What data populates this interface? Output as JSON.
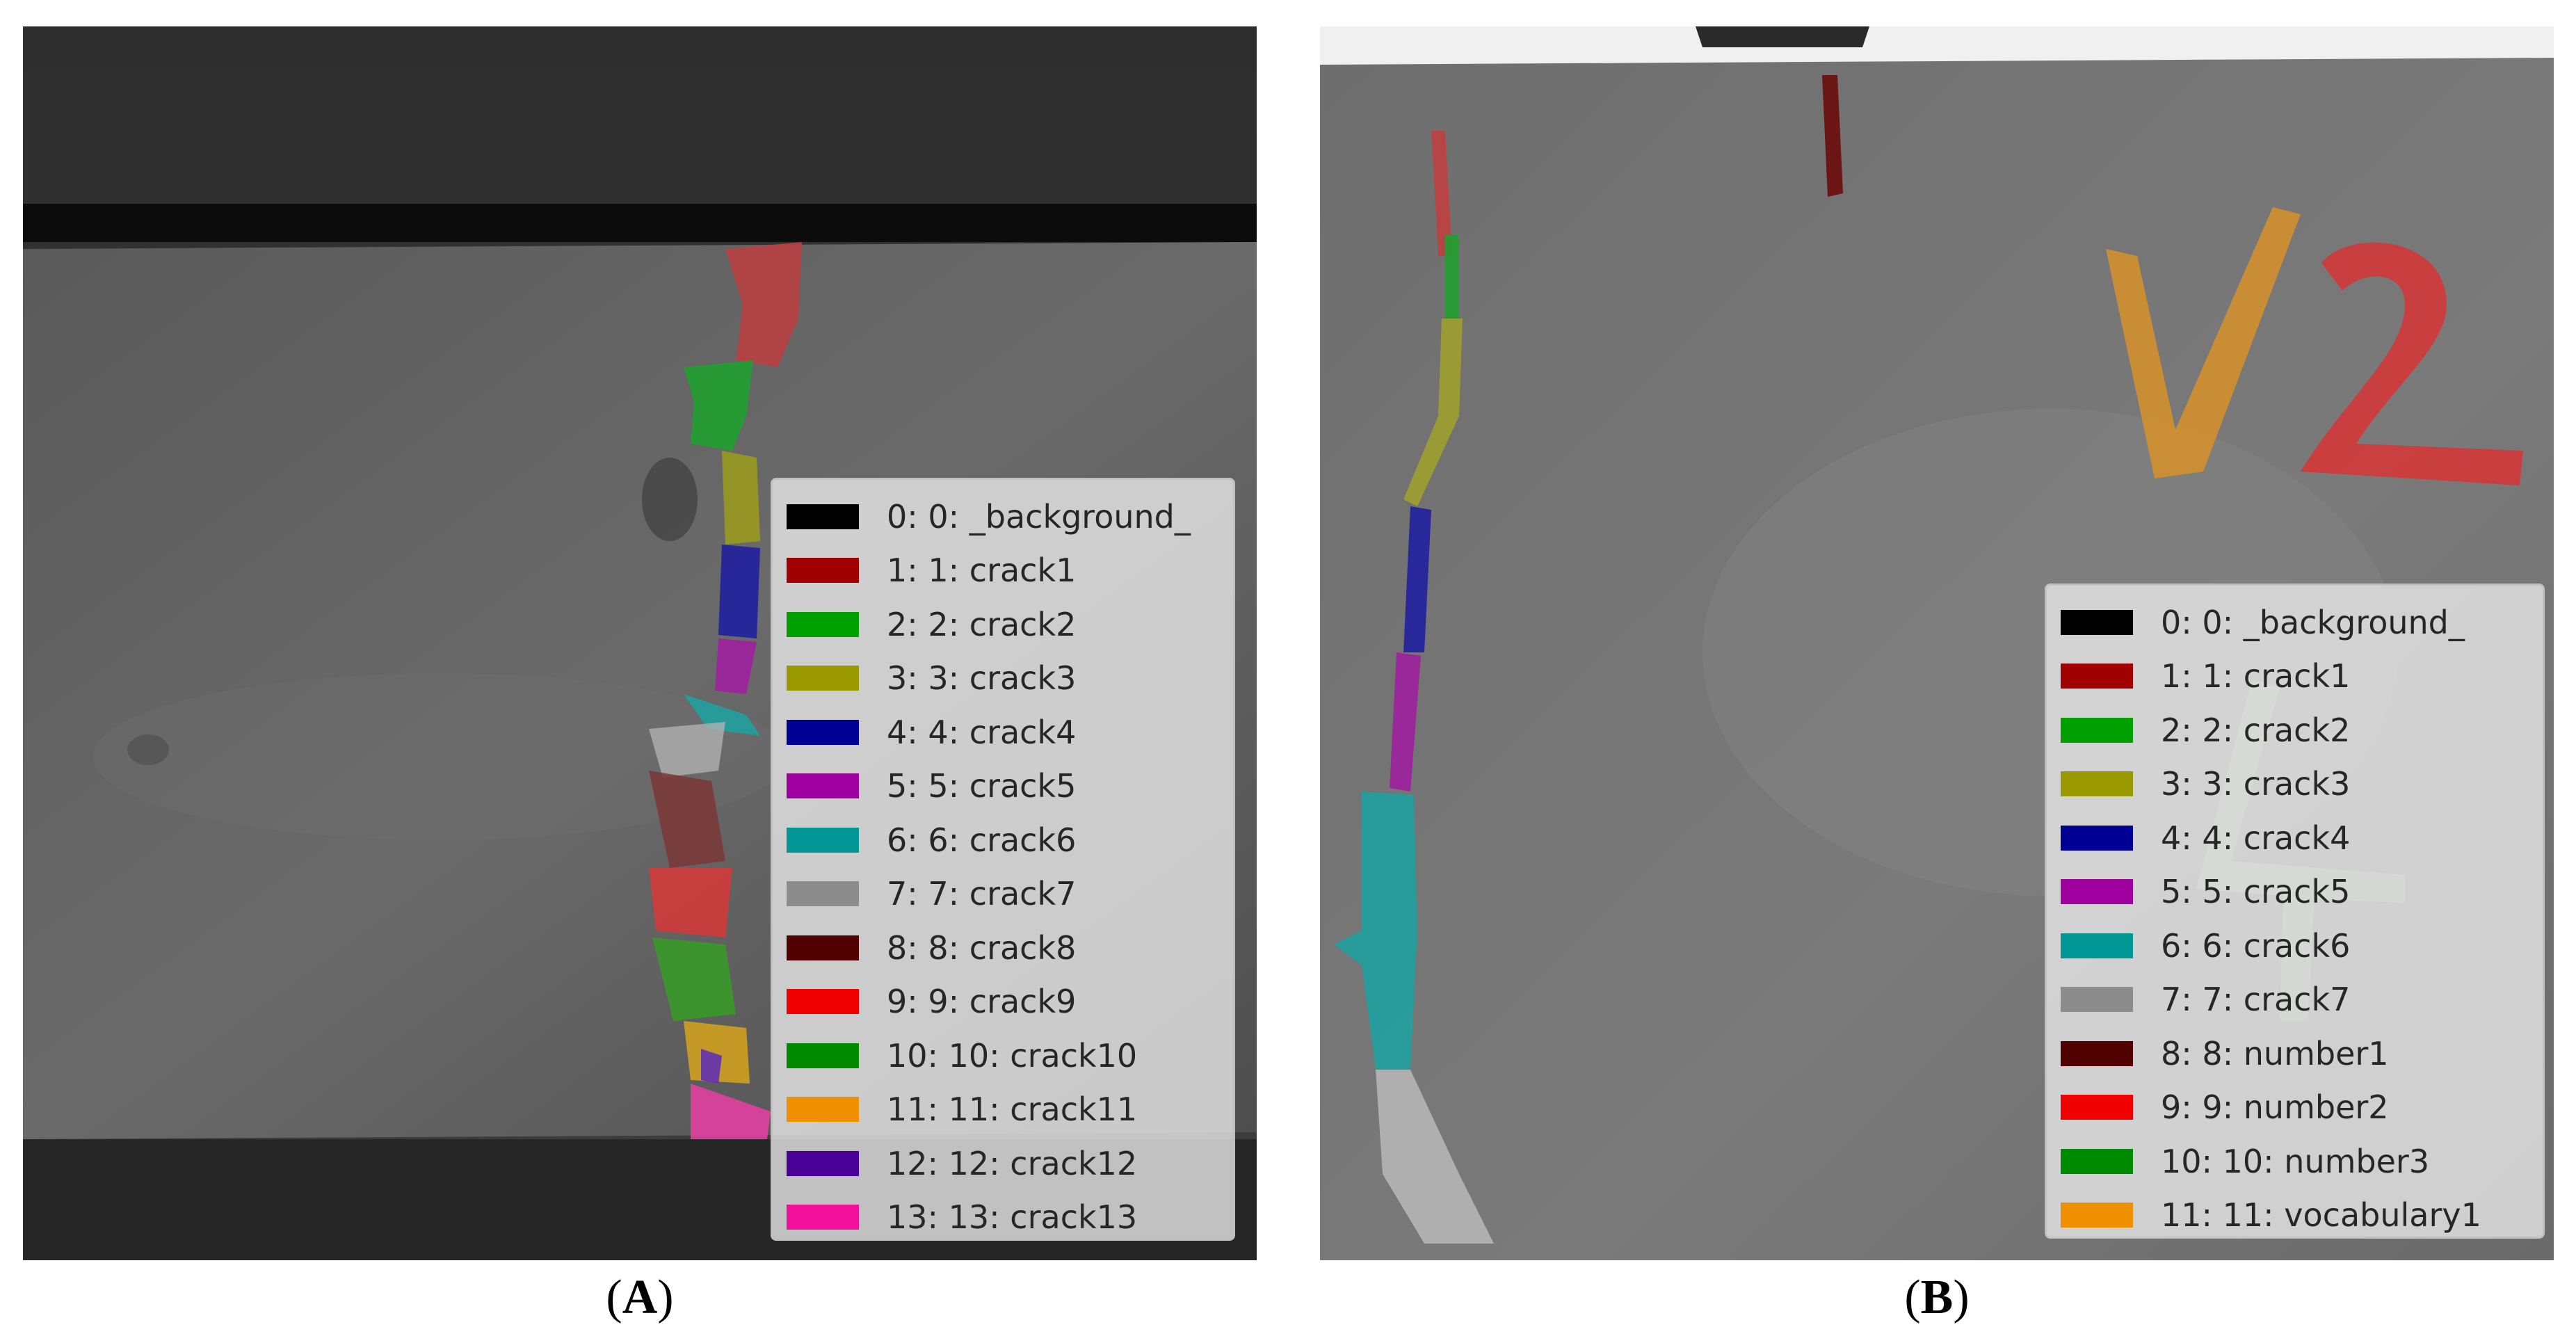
{
  "panels": [
    {
      "id": "A",
      "caption_open": "(",
      "caption_letter": "A",
      "caption_close": ")",
      "legend": [
        {
          "label": "0: 0: _background_",
          "color": "#000000"
        },
        {
          "label": "1: 1: crack1",
          "color": "#a00000"
        },
        {
          "label": "2: 2: crack2",
          "color": "#00a000"
        },
        {
          "label": "3: 3: crack3",
          "color": "#9a9a00"
        },
        {
          "label": "4: 4: crack4",
          "color": "#000094"
        },
        {
          "label": "5: 5: crack5",
          "color": "#a000a0"
        },
        {
          "label": "6: 6: crack6",
          "color": "#009696"
        },
        {
          "label": "7: 7: crack7",
          "color": "#8c8c8c"
        },
        {
          "label": "8: 8: crack8",
          "color": "#500000"
        },
        {
          "label": "9: 9: crack9",
          "color": "#f00000"
        },
        {
          "label": "10: 10: crack10",
          "color": "#008a00"
        },
        {
          "label": "11: 11: crack11",
          "color": "#f09000"
        },
        {
          "label": "12: 12: crack12",
          "color": "#4a0096"
        },
        {
          "label": "13: 13: crack13",
          "color": "#f0109a"
        }
      ]
    },
    {
      "id": "B",
      "caption_open": "(",
      "caption_letter": "B",
      "caption_close": ")",
      "legend": [
        {
          "label": "0: 0: _background_",
          "color": "#000000"
        },
        {
          "label": "1: 1: crack1",
          "color": "#a00000"
        },
        {
          "label": "2: 2: crack2",
          "color": "#00a000"
        },
        {
          "label": "3: 3: crack3",
          "color": "#9a9a00"
        },
        {
          "label": "4: 4: crack4",
          "color": "#000094"
        },
        {
          "label": "5: 5: crack5",
          "color": "#a000a0"
        },
        {
          "label": "6: 6: crack6",
          "color": "#009696"
        },
        {
          "label": "7: 7: crack7",
          "color": "#8c8c8c"
        },
        {
          "label": "8: 8: number1",
          "color": "#500000"
        },
        {
          "label": "9: 9: number2",
          "color": "#f00000"
        },
        {
          "label": "10: 10: number3",
          "color": "#008a00"
        },
        {
          "label": "11: 11: vocabulary1",
          "color": "#f09000"
        }
      ]
    }
  ]
}
